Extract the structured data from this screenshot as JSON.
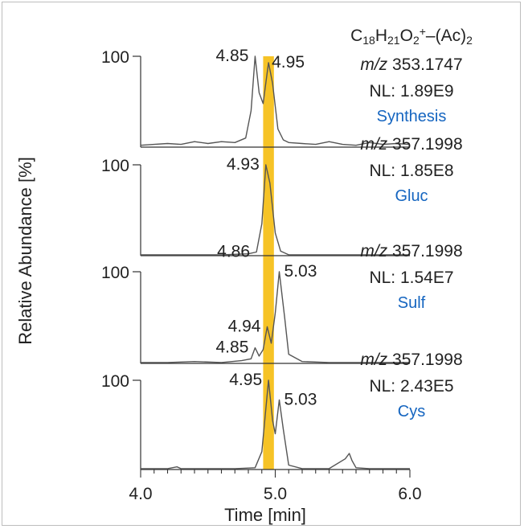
{
  "chart_data": {
    "type": "line",
    "xlabel": "Time [min]",
    "ylabel": "Relative Abundance [%]",
    "xlim": [
      4.0,
      6.0
    ],
    "x_ticks": [
      "4.0",
      "5.0",
      "6.0"
    ],
    "highlight_band": {
      "from": 4.91,
      "to": 4.99,
      "color": "#f5b800"
    },
    "panels": [
      {
        "formula": "C18H21O2+–(Ac)2",
        "mz_prefix": "m/z",
        "mz": "353.1747",
        "nl": "NL: 1.89E9",
        "name": "Synthesis",
        "ytick": "100",
        "peak_labels": [
          {
            "text": "4.85",
            "x": 4.85,
            "y": 100
          },
          {
            "text": "4.95",
            "x": 4.95,
            "y": 93
          }
        ],
        "x": [
          4.0,
          4.1,
          4.2,
          4.3,
          4.4,
          4.5,
          4.6,
          4.7,
          4.78,
          4.82,
          4.85,
          4.88,
          4.91,
          4.95,
          4.98,
          5.02,
          5.06,
          5.1,
          5.2,
          5.3,
          5.4,
          5.5,
          5.6,
          5.7,
          5.8,
          5.9,
          6.0
        ],
        "y": [
          2,
          3,
          4,
          3,
          6,
          4,
          6,
          5,
          10,
          40,
          100,
          60,
          48,
          93,
          70,
          20,
          8,
          5,
          4,
          3,
          6,
          3,
          2,
          5,
          3,
          4,
          3
        ]
      },
      {
        "mz_prefix": "m/z",
        "mz": "357.1998",
        "nl": "NL: 1.85E8",
        "name": "Gluc",
        "ytick": "100",
        "peak_labels": [
          {
            "text": "4.93",
            "x": 4.93,
            "y": 100
          },
          {
            "text": "4.86",
            "x": 4.86,
            "y": 4
          }
        ],
        "x": [
          4.0,
          4.2,
          4.4,
          4.6,
          4.8,
          4.86,
          4.9,
          4.93,
          4.96,
          5.0,
          5.04,
          5.1,
          5.3,
          5.5,
          5.7,
          6.0
        ],
        "y": [
          1,
          1,
          1,
          1,
          2,
          4,
          35,
          100,
          80,
          25,
          5,
          1,
          1,
          1,
          1,
          1
        ]
      },
      {
        "mz_prefix": "m/z",
        "mz": "357.1998",
        "nl": "NL: 1.54E7",
        "name": "Sulf",
        "ytick": "100",
        "peak_labels": [
          {
            "text": "5.03",
            "x": 5.03,
            "y": 100
          },
          {
            "text": "4.94",
            "x": 4.94,
            "y": 40
          },
          {
            "text": "4.85",
            "x": 4.85,
            "y": 17
          }
        ],
        "x": [
          4.0,
          4.2,
          4.4,
          4.6,
          4.75,
          4.82,
          4.85,
          4.88,
          4.91,
          4.94,
          4.97,
          5.0,
          5.03,
          5.07,
          5.1,
          5.2,
          5.4,
          5.6,
          5.8,
          6.0
        ],
        "y": [
          1,
          1,
          2,
          1,
          3,
          5,
          17,
          8,
          15,
          40,
          22,
          55,
          100,
          50,
          10,
          2,
          1,
          1,
          1,
          1
        ]
      },
      {
        "mz_prefix": "m/z",
        "mz": "357.1998",
        "nl": "NL: 2.43E5",
        "name": "Cys",
        "ytick": "100",
        "peak_labels": [
          {
            "text": "4.95",
            "x": 4.95,
            "y": 100
          },
          {
            "text": "5.03",
            "x": 5.03,
            "y": 78
          }
        ],
        "x": [
          4.0,
          4.2,
          4.27,
          4.3,
          4.5,
          4.7,
          4.85,
          4.9,
          4.95,
          4.98,
          5.0,
          5.03,
          5.06,
          5.1,
          5.2,
          5.4,
          5.52,
          5.55,
          5.57,
          5.6,
          5.7,
          6.0
        ],
        "y": [
          1,
          1,
          3,
          1,
          1,
          1,
          2,
          20,
          100,
          55,
          40,
          78,
          45,
          5,
          1,
          1,
          12,
          18,
          10,
          2,
          1,
          1
        ]
      }
    ]
  },
  "colors": {
    "trace": "#555555",
    "axis": "#333333",
    "highlight": "#f5b800",
    "name": "#1565c0",
    "text": "#222222"
  }
}
